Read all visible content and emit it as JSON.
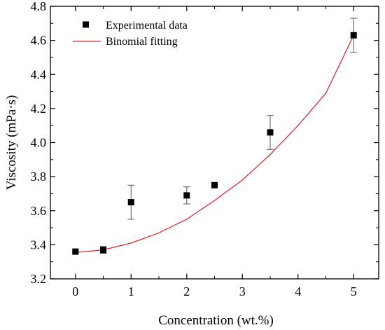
{
  "chart_data": {
    "type": "scatter",
    "xlabel": "Concentration (wt.%)",
    "ylabel": "Viscosity (mPa·s)",
    "xlim": [
      -0.45,
      5.45
    ],
    "ylim": [
      3.2,
      4.8
    ],
    "x_ticks": [
      "0",
      "1",
      "2",
      "3",
      "4",
      "5"
    ],
    "y_ticks": [
      "3.2",
      "3.4",
      "3.6",
      "3.8",
      "4.0",
      "4.2",
      "4.4",
      "4.6",
      "4.8"
    ],
    "legend_position": "top-left",
    "series": [
      {
        "name": "Experimental data",
        "kind": "scatter",
        "marker": "square",
        "color": "#000000",
        "x": [
          0,
          0.5,
          1,
          2,
          2.5,
          3.5,
          5
        ],
        "y": [
          3.36,
          3.37,
          3.65,
          3.69,
          3.75,
          4.06,
          4.63
        ],
        "error": [
          0.0,
          0.02,
          0.1,
          0.05,
          0.0,
          0.1,
          0.1
        ]
      },
      {
        "name": "Binomial fitting",
        "kind": "line",
        "color": "#e0292b",
        "x": [
          0,
          0.5,
          1,
          1.5,
          2,
          2.5,
          3,
          3.5,
          4,
          4.5,
          5
        ],
        "y": [
          3.355,
          3.37,
          3.41,
          3.47,
          3.55,
          3.66,
          3.78,
          3.93,
          4.1,
          4.29,
          4.63
        ]
      }
    ]
  }
}
